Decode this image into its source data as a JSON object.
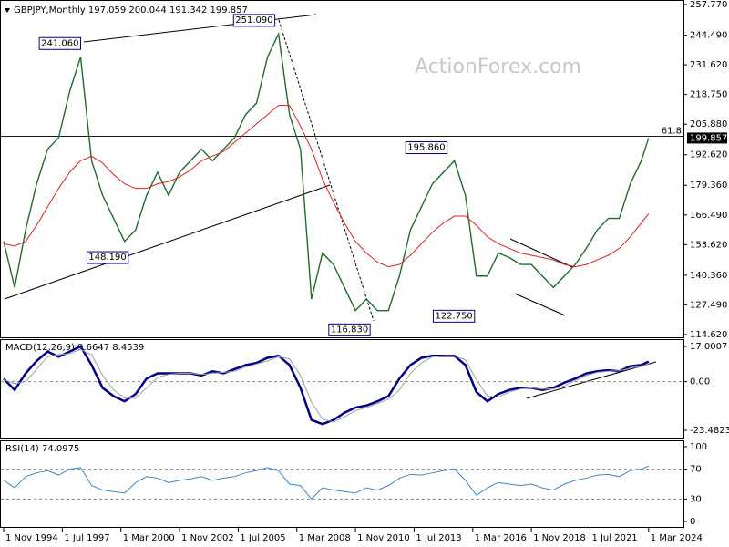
{
  "chart_data": [
    {
      "type": "line",
      "title": "GBPJPY,Monthly  197.059 200.044 191.342 199.857",
      "watermark": "ActionForex.com",
      "x": [
        0,
        6,
        12,
        18,
        24,
        30,
        36,
        42,
        48,
        54,
        60,
        66,
        72,
        78,
        84,
        90,
        96,
        102,
        108,
        114,
        120,
        126,
        132,
        138,
        144,
        150,
        156,
        162,
        168,
        174,
        180,
        186,
        192,
        198,
        204,
        210,
        216,
        222,
        228,
        234,
        240,
        246,
        252,
        258,
        264,
        270,
        276,
        282,
        288,
        294,
        300,
        306,
        312,
        318,
        324,
        330,
        336,
        342,
        348,
        352
      ],
      "xlim": [
        -2,
        371
      ],
      "xticks": [
        {
          "value": 0,
          "label": "1 Nov 1994"
        },
        {
          "value": 32,
          "label": "1 Jul 1997"
        },
        {
          "value": 64,
          "label": "1 Mar 2000"
        },
        {
          "value": 96,
          "label": "1 Nov 2002"
        },
        {
          "value": 128,
          "label": "1 Jul 2005"
        },
        {
          "value": 160,
          "label": "1 Mar 2008"
        },
        {
          "value": 192,
          "label": "1 Nov 2010"
        },
        {
          "value": 224,
          "label": "1 Jul 2013"
        },
        {
          "value": 256,
          "label": "1 Mar 2016"
        },
        {
          "value": 288,
          "label": "1 Nov 2018"
        },
        {
          "value": 320,
          "label": "1 Jul 2021"
        },
        {
          "value": 352,
          "label": "1 Mar 2024"
        }
      ],
      "ylim": [
        113.4,
        259.75
      ],
      "yticks": [
        {
          "value": 257.77,
          "label": "257.770"
        },
        {
          "value": 244.49,
          "label": "244.490"
        },
        {
          "value": 231.62,
          "label": "231.620"
        },
        {
          "value": 218.75,
          "label": "218.750"
        },
        {
          "value": 205.88,
          "label": "205.880"
        },
        {
          "value": 192.62,
          "label": "192.620"
        },
        {
          "value": 179.36,
          "label": "179.360"
        },
        {
          "value": 166.49,
          "label": "166.490"
        },
        {
          "value": 153.62,
          "label": "153.620"
        },
        {
          "value": 140.36,
          "label": "140.360"
        },
        {
          "value": 127.49,
          "label": "127.490"
        },
        {
          "value": 114.62,
          "label": "114.620"
        }
      ],
      "series": [
        {
          "color": "#1f6b2a",
          "values": [
            155,
            135,
            160,
            180,
            195,
            200,
            220,
            235,
            190,
            175,
            165,
            155,
            160,
            175,
            185,
            175,
            185,
            190,
            195,
            190,
            195,
            200,
            210,
            215,
            235,
            245,
            210,
            195,
            130,
            150,
            145,
            135,
            125,
            130,
            125,
            125,
            140,
            160,
            170,
            180,
            185,
            190,
            175,
            140,
            140,
            150,
            148,
            145,
            145,
            140,
            135,
            140,
            145,
            152,
            160,
            165,
            165,
            180,
            190,
            199.857
          ]
        },
        {
          "color": "#e02020",
          "values": [
            154,
            153,
            155,
            162,
            170,
            178,
            185,
            190,
            192,
            189,
            184,
            180,
            178,
            178,
            180,
            181,
            183,
            186,
            190,
            192,
            194,
            198,
            202,
            206,
            210,
            214,
            214,
            205,
            195,
            182,
            172,
            163,
            155,
            150,
            146,
            144,
            145,
            149,
            154,
            159,
            163,
            166,
            166,
            162,
            157,
            154,
            152,
            150,
            149,
            148,
            147,
            145,
            144,
            145,
            147,
            149,
            152,
            157,
            163,
            167
          ]
        }
      ],
      "annotations": [
        {
          "x": 44,
          "value": 241.06,
          "label": "241.060"
        },
        {
          "x": 150,
          "value": 251.09,
          "label": "251.090"
        },
        {
          "x": 70,
          "value": 148.19,
          "label": "148.190"
        },
        {
          "x": 202,
          "value": 116.83,
          "label": "116.830"
        },
        {
          "x": 244,
          "value": 195.86,
          "label": "195.860"
        },
        {
          "x": 259,
          "value": 122.75,
          "label": "122.750"
        }
      ],
      "fib_level": {
        "value": 200.6,
        "label": "61.8"
      },
      "last": {
        "value": 199.857,
        "label": "199.857"
      }
    },
    {
      "type": "line",
      "title": "MACD(12,26,9) 9.6647 8.4539",
      "ylim": [
        -27,
        20.5
      ],
      "yticks": [
        17.0007,
        {
          "value": 0,
          "label": "0.00"
        },
        -23.4823
      ],
      "levels": [
        0
      ],
      "series": [
        {
          "color": "#00008b",
          "values": [
            1.5,
            -4,
            4,
            10,
            14.5,
            12,
            14.5,
            17,
            8,
            -3,
            -7,
            -9.5,
            -6,
            1.5,
            4,
            4,
            4,
            4,
            3,
            5,
            4,
            6,
            8,
            9,
            11.5,
            12.5,
            8,
            -3,
            -18.5,
            -20.5,
            -18.5,
            -15,
            -12.5,
            -11.5,
            -9.5,
            -7,
            1.5,
            8,
            11.5,
            12.5,
            12.5,
            12.5,
            8,
            -5,
            -9.5,
            -6,
            -4,
            -3,
            -3,
            -4,
            -3,
            -0.5,
            1.5,
            4,
            5,
            5.5,
            5,
            7.5,
            8,
            9.6647
          ]
        },
        {
          "color": "#a0a0a0",
          "values": [
            1,
            -1,
            0,
            6,
            12,
            13,
            13.5,
            15.5,
            13,
            3,
            -4,
            -8,
            -8,
            -3,
            2,
            3.5,
            4,
            4,
            3.5,
            4,
            4.5,
            5,
            7,
            8.5,
            10,
            12,
            11,
            3,
            -10,
            -18,
            -19.5,
            -17,
            -14,
            -12.5,
            -10.5,
            -8.5,
            -4,
            4,
            9,
            12,
            12.5,
            12.5,
            10.5,
            1,
            -7,
            -7.5,
            -5,
            -3.5,
            -3,
            -3.5,
            -3.5,
            -2,
            0.5,
            3,
            4.5,
            5,
            5.2,
            6.5,
            7.5,
            8.4539
          ]
        }
      ]
    },
    {
      "type": "line",
      "title": "RSI(14) 74.0975",
      "ylim": [
        -7.3,
        108.5
      ],
      "yticks": [
        100,
        70,
        30,
        0
      ],
      "levels": [
        70,
        30
      ],
      "series": [
        {
          "color": "#3a86d4",
          "values": [
            55,
            45,
            60,
            65,
            68,
            62,
            70,
            72,
            48,
            42,
            40,
            38,
            52,
            60,
            58,
            52,
            55,
            57,
            60,
            55,
            58,
            60,
            65,
            68,
            72,
            68,
            50,
            48,
            30,
            45,
            42,
            40,
            38,
            45,
            42,
            48,
            58,
            63,
            62,
            65,
            68,
            70,
            55,
            35,
            45,
            52,
            50,
            48,
            50,
            45,
            42,
            50,
            55,
            58,
            62,
            63,
            60,
            68,
            70,
            74.0975
          ]
        }
      ]
    }
  ]
}
